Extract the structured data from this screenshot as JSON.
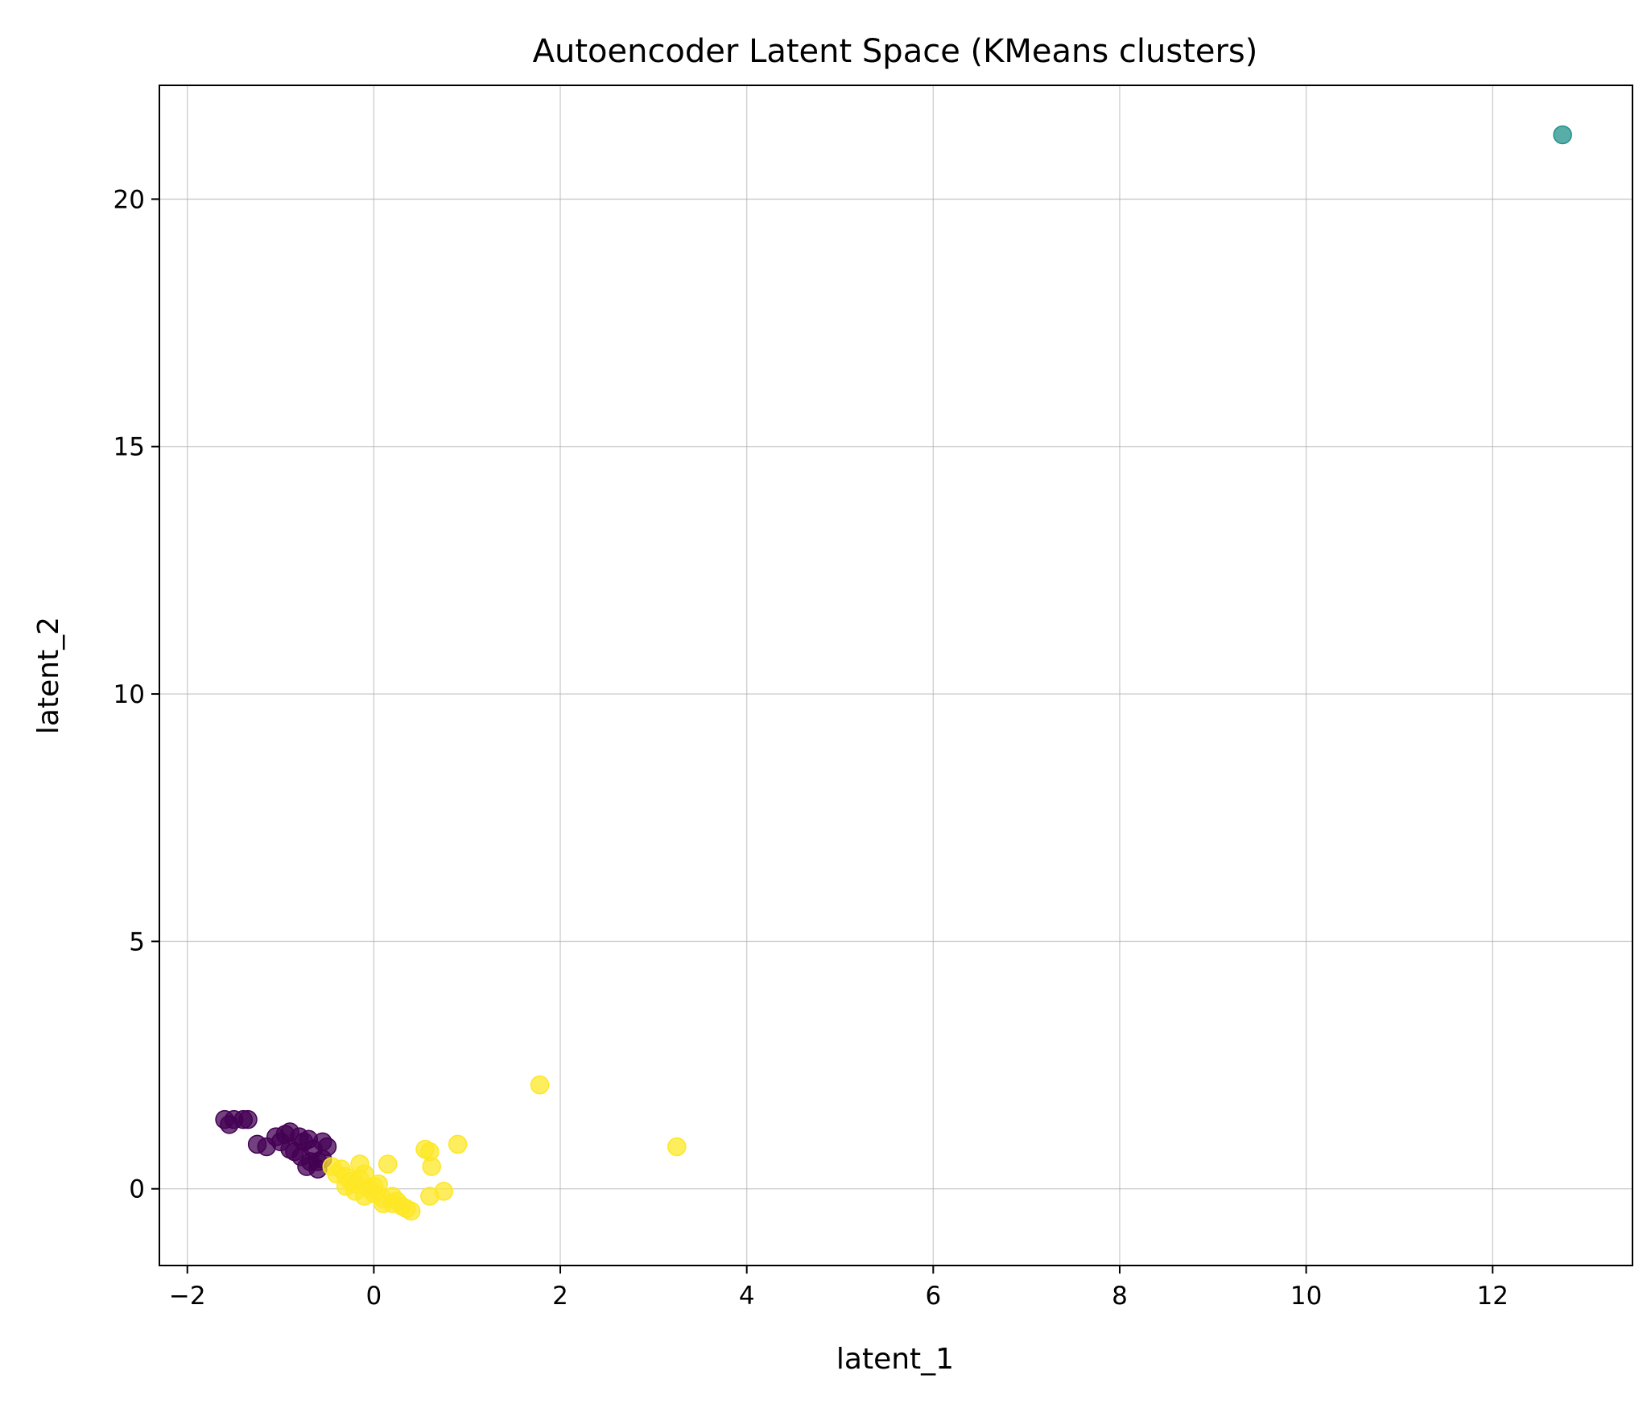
{
  "chart_data": {
    "type": "scatter",
    "title": "Autoencoder Latent Space (KMeans clusters)",
    "xlabel": "latent_1",
    "ylabel": "latent_2",
    "xlim": [
      -2.3,
      13.5
    ],
    "ylim": [
      -1.55,
      22.3
    ],
    "xticks": [
      -2,
      0,
      2,
      4,
      6,
      8,
      10,
      12
    ],
    "xtick_labels": [
      "−2",
      "0",
      "2",
      "4",
      "6",
      "8",
      "10",
      "12"
    ],
    "yticks": [
      0,
      5,
      10,
      15,
      20
    ],
    "ytick_labels": [
      "0",
      "5",
      "10",
      "15",
      "20"
    ],
    "grid": true,
    "legend": "none",
    "colors": {
      "cluster_0": "#440154",
      "cluster_1": "#21918c",
      "cluster_2": "#fde725"
    },
    "series": [
      {
        "cluster": 0,
        "color": "#440154",
        "points": [
          [
            -1.6,
            1.4
          ],
          [
            -1.55,
            1.3
          ],
          [
            -1.5,
            1.4
          ],
          [
            -1.4,
            1.4
          ],
          [
            -1.35,
            1.4
          ],
          [
            -1.25,
            0.9
          ],
          [
            -1.15,
            0.85
          ],
          [
            -1.05,
            1.05
          ],
          [
            -0.95,
            1.1
          ],
          [
            -0.9,
            1.15
          ],
          [
            -0.85,
            0.75
          ],
          [
            -0.8,
            1.05
          ],
          [
            -0.75,
            0.95
          ],
          [
            -0.7,
            1.0
          ],
          [
            -0.65,
            0.8
          ],
          [
            -0.6,
            0.55
          ],
          [
            -0.55,
            0.95
          ],
          [
            -0.5,
            0.85
          ],
          [
            -0.72,
            0.45
          ],
          [
            -0.6,
            0.4
          ],
          [
            -0.55,
            0.6
          ],
          [
            -0.9,
            0.8
          ],
          [
            -0.78,
            0.65
          ],
          [
            -0.68,
            0.55
          ],
          [
            -1.0,
            0.95
          ]
        ]
      },
      {
        "cluster": 1,
        "color": "#21918c",
        "points": [
          [
            12.75,
            21.3
          ]
        ]
      },
      {
        "cluster": 2,
        "color": "#fde725",
        "points": [
          [
            -0.45,
            0.45
          ],
          [
            -0.4,
            0.3
          ],
          [
            -0.35,
            0.4
          ],
          [
            -0.3,
            0.25
          ],
          [
            -0.25,
            0.15
          ],
          [
            -0.2,
            0.1
          ],
          [
            -0.15,
            0.5
          ],
          [
            -0.1,
            0.3
          ],
          [
            -0.05,
            0.0
          ],
          [
            0.0,
            -0.1
          ],
          [
            0.05,
            0.1
          ],
          [
            0.1,
            -0.2
          ],
          [
            0.15,
            0.5
          ],
          [
            0.2,
            -0.3
          ],
          [
            0.25,
            -0.25
          ],
          [
            0.3,
            -0.35
          ],
          [
            0.35,
            -0.4
          ],
          [
            0.4,
            -0.45
          ],
          [
            -0.2,
            -0.05
          ],
          [
            -0.1,
            -0.15
          ],
          [
            0.0,
            0.05
          ],
          [
            0.1,
            -0.3
          ],
          [
            0.2,
            -0.15
          ],
          [
            -0.3,
            0.05
          ],
          [
            -0.15,
            0.2
          ],
          [
            0.55,
            0.8
          ],
          [
            0.6,
            0.75
          ],
          [
            0.62,
            0.45
          ],
          [
            0.6,
            -0.15
          ],
          [
            0.75,
            -0.05
          ],
          [
            0.9,
            0.9
          ],
          [
            1.78,
            2.1
          ],
          [
            3.25,
            0.85
          ]
        ]
      }
    ]
  }
}
